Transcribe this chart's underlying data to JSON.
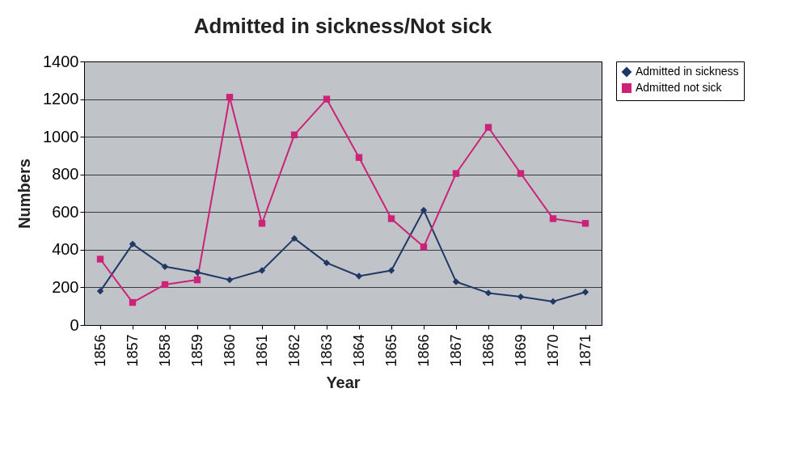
{
  "chart_data": {
    "type": "line",
    "title": "Admitted in sickness/Not sick",
    "xlabel": "Year",
    "ylabel": "Numbers",
    "categories": [
      "1856",
      "1857",
      "1858",
      "1859",
      "1860",
      "1861",
      "1862",
      "1863",
      "1864",
      "1865",
      "1866",
      "1867",
      "1868",
      "1869",
      "1870",
      "1871"
    ],
    "series": [
      {
        "name": "Admitted in sickness",
        "color": "#1f3864",
        "marker": "diamond",
        "values": [
          180,
          430,
          310,
          280,
          240,
          290,
          460,
          330,
          260,
          290,
          610,
          230,
          170,
          150,
          125,
          175
        ]
      },
      {
        "name": "Admitted not sick",
        "color": "#cc2277",
        "marker": "square",
        "values": [
          350,
          120,
          215,
          240,
          1210,
          540,
          1010,
          1200,
          890,
          565,
          415,
          805,
          1050,
          805,
          565,
          540
        ]
      }
    ],
    "ylim": [
      0,
      1400
    ],
    "yticks": [
      0,
      200,
      400,
      600,
      800,
      1000,
      1200,
      1400
    ],
    "grid": "y",
    "legend": "right"
  }
}
